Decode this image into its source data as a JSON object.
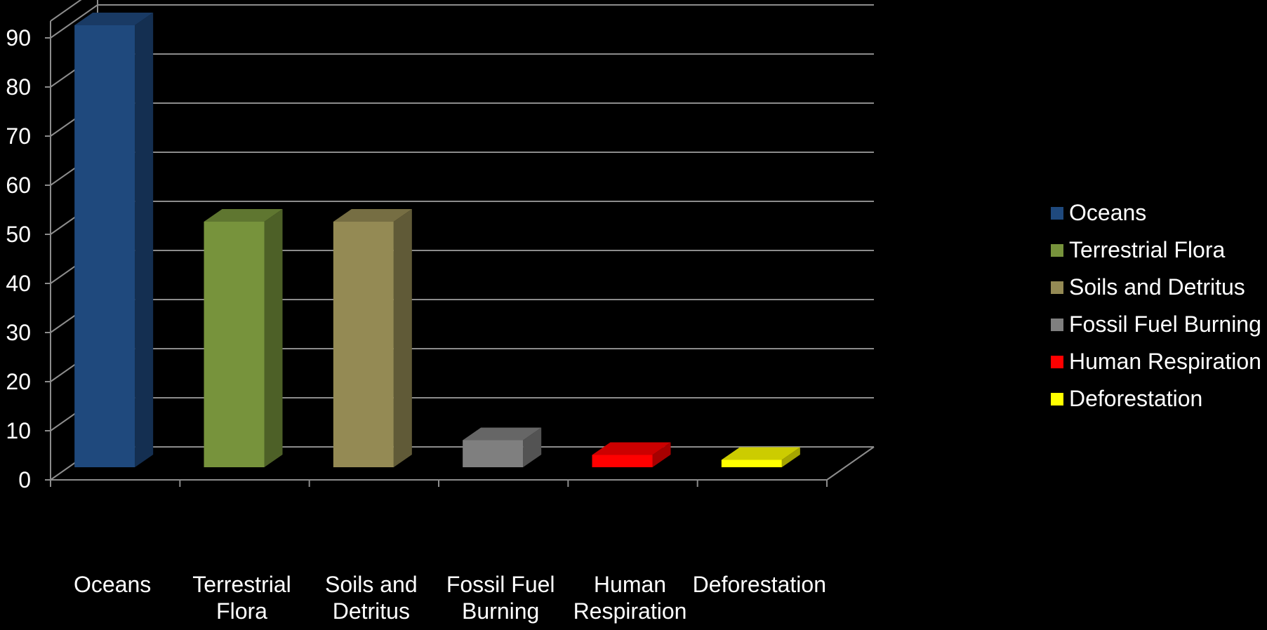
{
  "chart_data": {
    "type": "bar",
    "style": "3d-column",
    "categories": [
      "Oceans",
      "Terrestrial Flora",
      "Soils and Detritus",
      "Fossil Fuel Burning",
      "Human Respiration",
      "Deforestation"
    ],
    "category_lines": [
      [
        "Oceans"
      ],
      [
        "Terrestrial",
        "Flora"
      ],
      [
        "Soils and",
        "Detritus"
      ],
      [
        "Fossil Fuel",
        "Burning"
      ],
      [
        "Human",
        "Respiration"
      ],
      [
        "Deforestation"
      ]
    ],
    "values": [
      90,
      50,
      50,
      5.5,
      2.5,
      1.5
    ],
    "colors": [
      "#1f497d",
      "#77933c",
      "#948a54",
      "#7f7f7f",
      "#ff0000",
      "#ffff00"
    ],
    "legend": [
      "Oceans",
      "Terrestrial Flora",
      "Soils and Detritus",
      "Fossil Fuel Burning",
      "Human Respiration",
      "Deforestation"
    ],
    "legend_position": "right",
    "ylim": [
      0,
      90
    ],
    "yticks": [
      0,
      10,
      20,
      30,
      40,
      50,
      60,
      70,
      80,
      90
    ],
    "grid": true,
    "title": "",
    "xlabel": "",
    "ylabel": "",
    "background": "#000000"
  }
}
